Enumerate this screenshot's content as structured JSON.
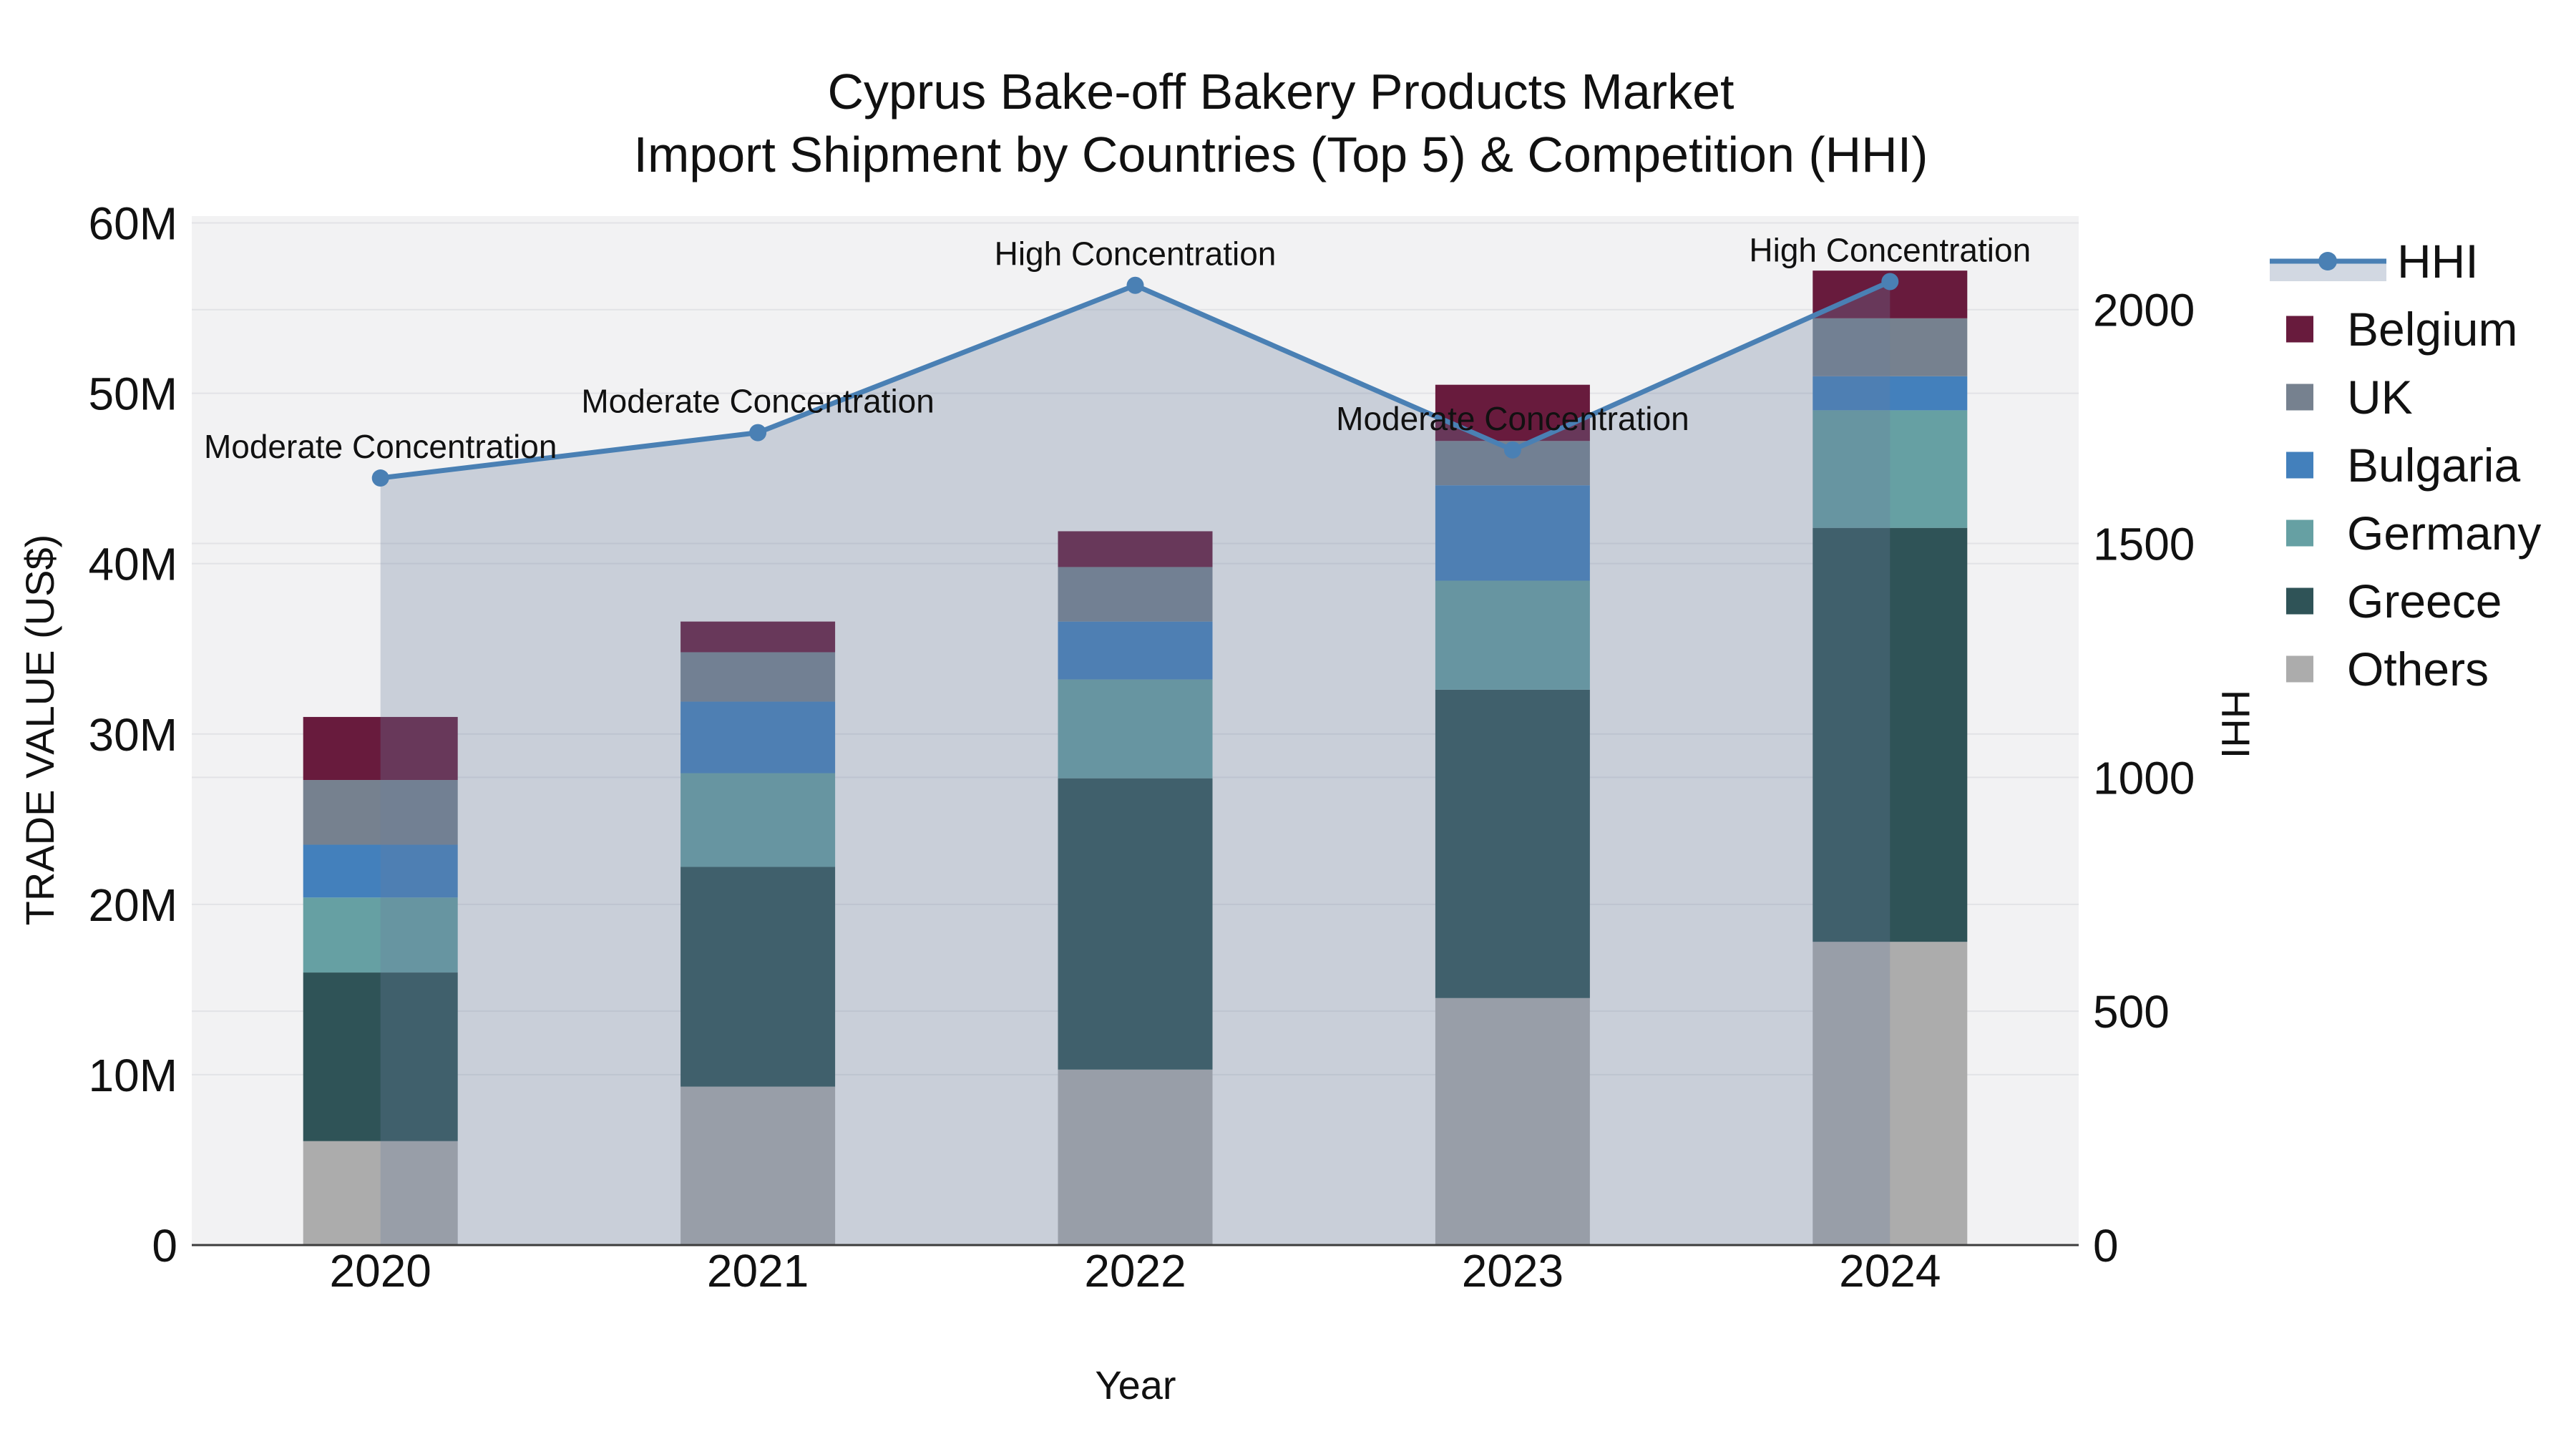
{
  "title": {
    "line1": "Cyprus Bake-off Bakery Products Market",
    "line2": "Import Shipment by Countries (Top 5) & Competition (HHI)"
  },
  "axes": {
    "x": {
      "title": "Year",
      "tick_labels": [
        "2020",
        "2021",
        "2022",
        "2023",
        "2024"
      ]
    },
    "y_left": {
      "title": "TRADE VALUE (US$)",
      "tick_labels": [
        "0",
        "10M",
        "20M",
        "30M",
        "40M",
        "50M",
        "60M"
      ],
      "tick_values_musd": [
        0,
        10,
        20,
        30,
        40,
        50,
        60
      ]
    },
    "y_right": {
      "title": "HHI",
      "tick_labels": [
        "0",
        "500",
        "1000",
        "1500",
        "2000"
      ],
      "tick_values": [
        0,
        500,
        1000,
        1500,
        2000
      ]
    }
  },
  "legend": {
    "order": [
      "HHI",
      "Belgium",
      "UK",
      "Bulgaria",
      "Germany",
      "Greece",
      "Others"
    ]
  },
  "colors": {
    "hhi_line": "#4A80B4",
    "hhi_area": "rgba(105,125,160,0.30)",
    "belgium": "#681B3D",
    "uk": "#76818F",
    "bulgaria": "#4380BC",
    "germany": "#66A0A3",
    "greece": "#2F5357",
    "others": "#ACACAC",
    "plot_bg": "#F2F2F3",
    "grid": "#E2E3E6",
    "axis_line": "#3C3C3C",
    "text": "#111111"
  },
  "chart_data": {
    "type": "bar",
    "subtype": "stacked-bars-with-line-overlay-dual-y-axis",
    "categories": [
      "2020",
      "2021",
      "2022",
      "2023",
      "2024"
    ],
    "values_unit": "million US$",
    "series": [
      {
        "name": "Others",
        "values": [
          6.1,
          9.3,
          10.3,
          14.5,
          17.8
        ]
      },
      {
        "name": "Greece",
        "values": [
          9.9,
          12.9,
          17.1,
          18.1,
          24.3
        ]
      },
      {
        "name": "Germany",
        "values": [
          4.4,
          5.5,
          5.8,
          6.4,
          6.9
        ]
      },
      {
        "name": "Bulgaria",
        "values": [
          3.1,
          4.2,
          3.4,
          5.6,
          2.0
        ]
      },
      {
        "name": "UK",
        "values": [
          3.8,
          2.9,
          3.2,
          2.6,
          3.4
        ]
      },
      {
        "name": "Belgium",
        "values": [
          3.7,
          1.8,
          2.1,
          3.3,
          2.8
        ]
      }
    ],
    "bar_totals_musd": [
      31.0,
      36.6,
      41.9,
      50.5,
      57.2
    ],
    "line_series": {
      "name": "HHI",
      "axis": "right",
      "values": [
        1640,
        1737,
        2052,
        1700,
        2060
      ]
    },
    "annotations": [
      {
        "category": "2020",
        "text": "Moderate Concentration"
      },
      {
        "category": "2021",
        "text": "Moderate Concentration"
      },
      {
        "category": "2022",
        "text": "High Concentration"
      },
      {
        "category": "2023",
        "text": "Moderate Concentration"
      },
      {
        "category": "2024",
        "text": "High Concentration"
      }
    ],
    "xlabel": "Year",
    "ylabel_left": "TRADE VALUE (US$)",
    "ylabel_right": "HHI",
    "ylim_left_musd": [
      0,
      60.4
    ],
    "ylim_right": [
      0,
      2200
    ],
    "grid": true,
    "legend_position": "right"
  }
}
